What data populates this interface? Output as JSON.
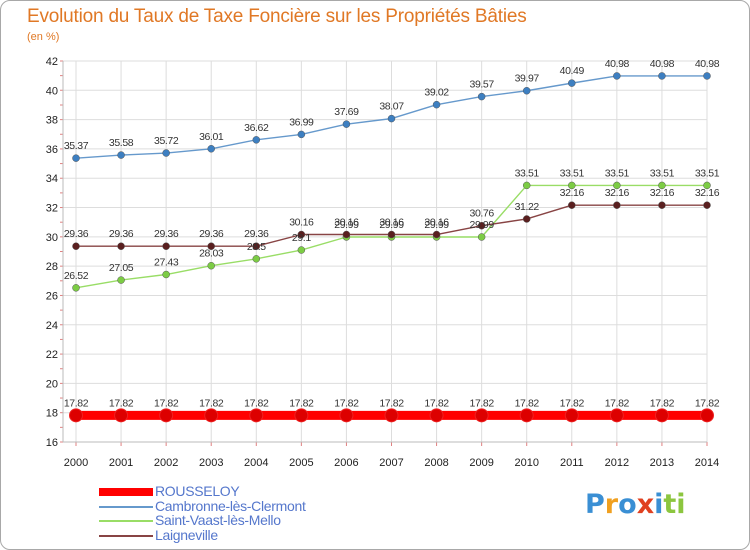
{
  "title": "Evolution du Taux de Taxe Foncière sur les Propriétés Bâties",
  "subtitle": "(en %)",
  "logo": {
    "text": "Proxiti",
    "letters": [
      {
        "ch": "P",
        "color": "#3a8fd4"
      },
      {
        "ch": "r",
        "color": "#f0a020"
      },
      {
        "ch": "o",
        "color": "#3a8fd4"
      },
      {
        "ch": "x",
        "color": "#e04020"
      },
      {
        "ch": "i",
        "color": "#3a8fd4"
      },
      {
        "ch": "t",
        "color": "#8cc63f"
      },
      {
        "ch": "i",
        "color": "#8cc63f"
      }
    ]
  },
  "chart_data": {
    "type": "line",
    "title": "Evolution du Taux de Taxe Foncière sur les Propriétés Bâties",
    "ylabel": "(en %)",
    "xlabel": "",
    "ylim": [
      16,
      42
    ],
    "yticks": [
      16,
      18,
      20,
      22,
      24,
      26,
      28,
      30,
      32,
      34,
      36,
      38,
      40,
      42
    ],
    "grid": true,
    "legend_position": "bottom-left",
    "categories": [
      "2000",
      "2001",
      "2002",
      "2003",
      "2004",
      "2005",
      "2006",
      "2007",
      "2008",
      "2009",
      "2010",
      "2011",
      "2012",
      "2013",
      "2014"
    ],
    "series": [
      {
        "name": "ROUSSELOY",
        "color": "#ff0000",
        "marker_color": "#dd0000",
        "bold": true,
        "values": [
          17.82,
          17.82,
          17.82,
          17.82,
          17.82,
          17.82,
          17.82,
          17.82,
          17.82,
          17.82,
          17.82,
          17.82,
          17.82,
          17.82,
          17.82
        ],
        "labels": [
          "17.82",
          "17.82",
          "17.82",
          "17.82",
          "17.82",
          "17.82",
          "17.82",
          "17.82",
          "17.82",
          "17.82",
          "17.82",
          "17.82",
          "17.82",
          "17.82",
          "17.82"
        ]
      },
      {
        "name": "Cambronne-lès-Clermont",
        "color": "#6699cc",
        "marker_color": "#3d7fc1",
        "bold": false,
        "values": [
          35.37,
          35.58,
          35.72,
          36.01,
          36.62,
          36.99,
          37.69,
          38.07,
          39.02,
          39.57,
          39.97,
          40.49,
          40.98,
          40.98,
          40.98
        ],
        "labels": [
          "35.37",
          "35.58",
          "35.72",
          "36.01",
          "36.62",
          "36.99",
          "37.69",
          "38.07",
          "39.02",
          "39.57",
          "39.97",
          "40.49",
          "40.98",
          "40.98",
          "40.98"
        ]
      },
      {
        "name": "Saint-Vaast-lès-Mello",
        "color": "#99dd66",
        "marker_color": "#7ccc44",
        "bold": false,
        "values": [
          26.52,
          27.05,
          27.43,
          28.03,
          28.5,
          29.1,
          29.99,
          29.99,
          29.99,
          29.99,
          33.51,
          33.51,
          33.51,
          33.51,
          33.51
        ],
        "labels": [
          "26.52",
          "27.05",
          "27.43",
          "28.03",
          "28.5",
          "29.1",
          "29.99",
          "29.99",
          "29.99",
          "29.99",
          "33.51",
          "33.51",
          "33.51",
          "33.51",
          "33.51"
        ]
      },
      {
        "name": "Laigneville",
        "color": "#884444",
        "marker_color": "#5a1f1f",
        "bold": false,
        "values": [
          29.36,
          29.36,
          29.36,
          29.36,
          29.36,
          30.16,
          30.16,
          30.16,
          30.16,
          30.76,
          31.22,
          32.16,
          32.16,
          32.16,
          32.16
        ],
        "labels": [
          "29.36",
          "29.36",
          "29.36",
          "29.36",
          "29.36",
          "30.16",
          "30.16",
          "30.16",
          "30.16",
          "30.76",
          "31.22",
          "32.16",
          "32.16",
          "32.16",
          "32.16"
        ]
      }
    ]
  }
}
